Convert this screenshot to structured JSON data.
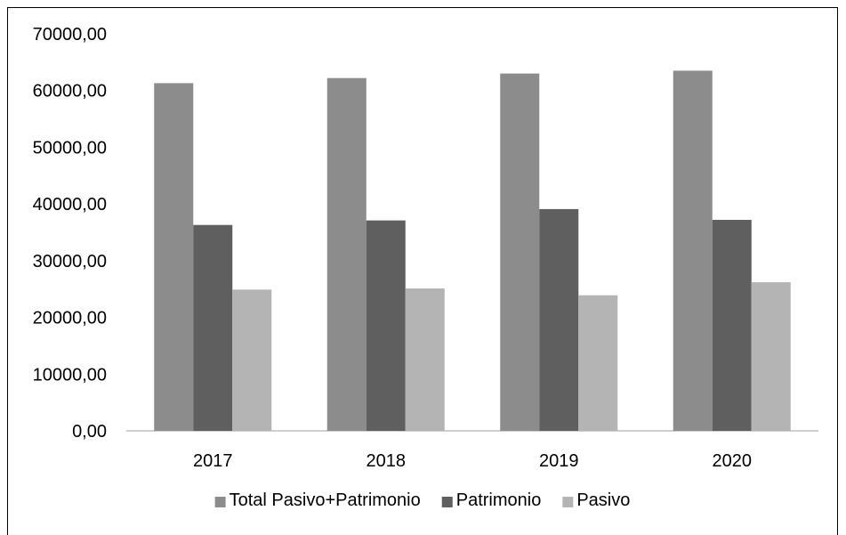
{
  "chart_data": {
    "type": "bar",
    "title": "",
    "xlabel": "",
    "ylabel": "",
    "categories": [
      "2017",
      "2018",
      "2019",
      "2020"
    ],
    "series": [
      {
        "name": "Total Pasivo+Patrimonio",
        "values": [
          61300,
          62200,
          63000,
          63500
        ],
        "color": "#8c8c8c"
      },
      {
        "name": "Patrimonio",
        "values": [
          36300,
          37100,
          39100,
          37200
        ],
        "color": "#5f5f5f"
      },
      {
        "name": "Pasivo",
        "values": [
          24900,
          25100,
          23900,
          26200
        ],
        "color": "#b4b4b4"
      }
    ],
    "ylim": [
      0,
      70000
    ],
    "yticks": [
      0,
      10000,
      20000,
      30000,
      40000,
      50000,
      60000,
      70000
    ],
    "ytick_labels": [
      "0,00",
      "10000,00",
      "20000,00",
      "30000,00",
      "40000,00",
      "50000,00",
      "60000,00",
      "70000,00"
    ],
    "grid": false,
    "legend_position": "bottom"
  }
}
